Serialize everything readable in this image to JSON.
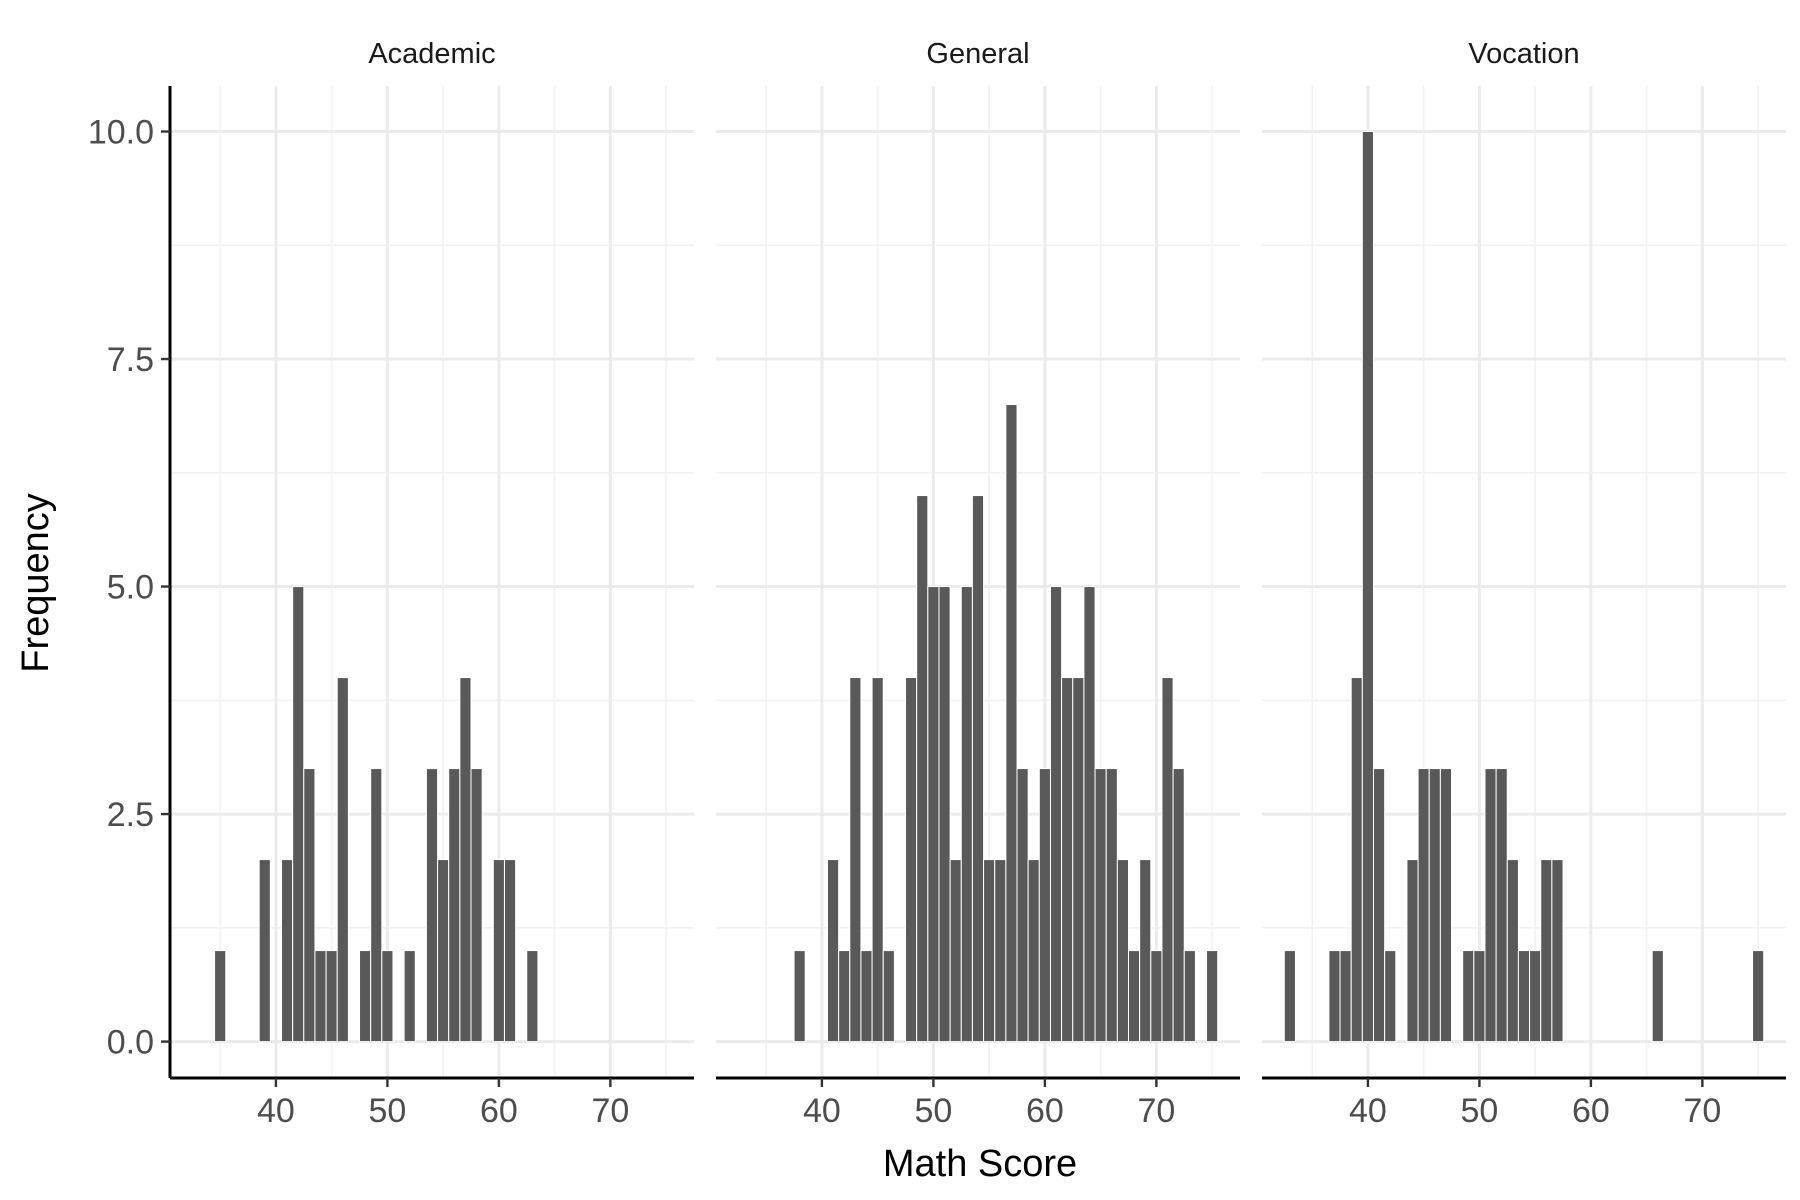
{
  "chart_data": {
    "type": "bar",
    "xlabel": "Math Score",
    "ylabel": "Frequency",
    "title": "",
    "ylim": [
      -0.4,
      10.5
    ],
    "xlim": [
      30.5,
      77.5
    ],
    "x_ticks": [
      "40",
      "50",
      "60",
      "70"
    ],
    "y_ticks": [
      "0.0",
      "2.5",
      "5.0",
      "7.5",
      "10.0"
    ],
    "grid": true,
    "colors": {
      "bar": "#595959",
      "grid": "#ebebeb"
    },
    "panels": [
      {
        "name": "Academic",
        "bins": [
          {
            "x": 35,
            "count": 1
          },
          {
            "x": 39,
            "count": 2
          },
          {
            "x": 41,
            "count": 2
          },
          {
            "x": 42,
            "count": 5
          },
          {
            "x": 43,
            "count": 3
          },
          {
            "x": 44,
            "count": 1
          },
          {
            "x": 45,
            "count": 1
          },
          {
            "x": 46,
            "count": 4
          },
          {
            "x": 48,
            "count": 1
          },
          {
            "x": 49,
            "count": 3
          },
          {
            "x": 50,
            "count": 1
          },
          {
            "x": 52,
            "count": 1
          },
          {
            "x": 54,
            "count": 3
          },
          {
            "x": 55,
            "count": 2
          },
          {
            "x": 56,
            "count": 3
          },
          {
            "x": 57,
            "count": 4
          },
          {
            "x": 58,
            "count": 3
          },
          {
            "x": 60,
            "count": 2
          },
          {
            "x": 61,
            "count": 2
          },
          {
            "x": 63,
            "count": 1
          }
        ]
      },
      {
        "name": "General",
        "bins": [
          {
            "x": 38,
            "count": 1
          },
          {
            "x": 41,
            "count": 2
          },
          {
            "x": 42,
            "count": 1
          },
          {
            "x": 43,
            "count": 4
          },
          {
            "x": 44,
            "count": 1
          },
          {
            "x": 45,
            "count": 4
          },
          {
            "x": 46,
            "count": 1
          },
          {
            "x": 48,
            "count": 4
          },
          {
            "x": 49,
            "count": 6
          },
          {
            "x": 50,
            "count": 5
          },
          {
            "x": 51,
            "count": 5
          },
          {
            "x": 52,
            "count": 2
          },
          {
            "x": 53,
            "count": 5
          },
          {
            "x": 54,
            "count": 6
          },
          {
            "x": 55,
            "count": 2
          },
          {
            "x": 56,
            "count": 2
          },
          {
            "x": 57,
            "count": 7
          },
          {
            "x": 58,
            "count": 3
          },
          {
            "x": 59,
            "count": 2
          },
          {
            "x": 60,
            "count": 3
          },
          {
            "x": 61,
            "count": 5
          },
          {
            "x": 62,
            "count": 4
          },
          {
            "x": 63,
            "count": 4
          },
          {
            "x": 64,
            "count": 5
          },
          {
            "x": 65,
            "count": 3
          },
          {
            "x": 66,
            "count": 3
          },
          {
            "x": 67,
            "count": 2
          },
          {
            "x": 68,
            "count": 1
          },
          {
            "x": 69,
            "count": 2
          },
          {
            "x": 70,
            "count": 1
          },
          {
            "x": 71,
            "count": 4
          },
          {
            "x": 72,
            "count": 3
          },
          {
            "x": 73,
            "count": 1
          },
          {
            "x": 75,
            "count": 1
          }
        ]
      },
      {
        "name": "Vocation",
        "bins": [
          {
            "x": 33,
            "count": 1
          },
          {
            "x": 37,
            "count": 1
          },
          {
            "x": 38,
            "count": 1
          },
          {
            "x": 39,
            "count": 4
          },
          {
            "x": 40,
            "count": 10
          },
          {
            "x": 41,
            "count": 3
          },
          {
            "x": 42,
            "count": 1
          },
          {
            "x": 44,
            "count": 2
          },
          {
            "x": 45,
            "count": 3
          },
          {
            "x": 46,
            "count": 3
          },
          {
            "x": 47,
            "count": 3
          },
          {
            "x": 49,
            "count": 1
          },
          {
            "x": 50,
            "count": 1
          },
          {
            "x": 51,
            "count": 3
          },
          {
            "x": 52,
            "count": 3
          },
          {
            "x": 53,
            "count": 2
          },
          {
            "x": 54,
            "count": 1
          },
          {
            "x": 55,
            "count": 1
          },
          {
            "x": 56,
            "count": 2
          },
          {
            "x": 57,
            "count": 2
          },
          {
            "x": 66,
            "count": 1
          },
          {
            "x": 75,
            "count": 1
          }
        ]
      }
    ]
  }
}
